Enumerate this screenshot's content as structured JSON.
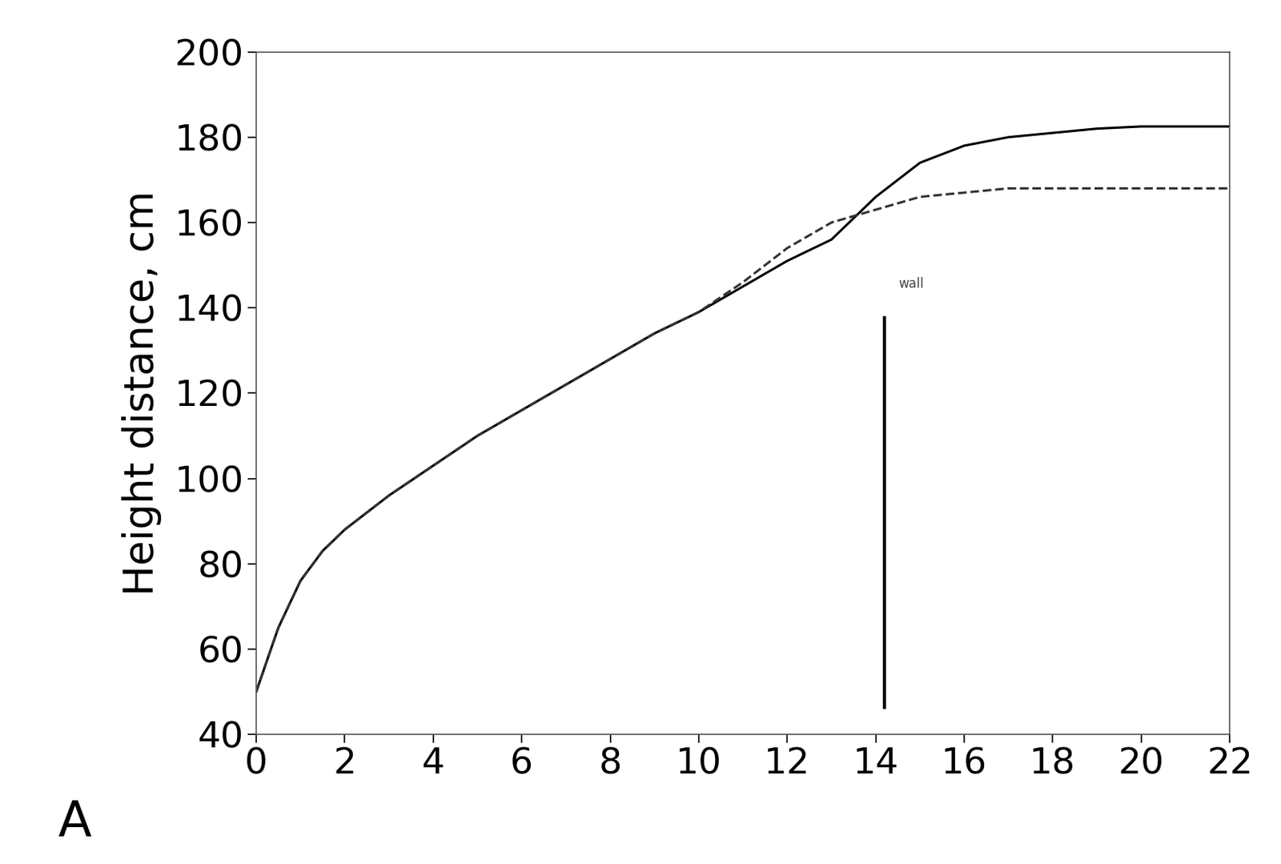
{
  "chart_data": {
    "type": "line",
    "y_label": "Height distance, cm",
    "panel_label": "A",
    "annotation": "wall",
    "x": [
      0,
      0.5,
      1,
      1.5,
      2,
      3,
      4,
      5,
      6,
      7,
      8,
      9,
      10,
      11,
      12,
      13,
      14,
      15,
      16,
      17,
      18,
      19,
      20,
      22
    ],
    "series": [
      {
        "color": "#000000",
        "line_style": "solid",
        "values": [
          50,
          65,
          76,
          83,
          88,
          96,
          103,
          110,
          116,
          122,
          128,
          134,
          139,
          145,
          151,
          156,
          166,
          174,
          178,
          180,
          181,
          182,
          182.5,
          182.5
        ]
      },
      {
        "color": "#333333",
        "line_style": "dashed",
        "values": [
          50,
          65,
          76,
          83,
          88,
          96,
          103,
          110,
          116,
          122,
          128,
          134,
          139,
          146,
          154,
          160,
          163,
          166,
          167,
          168,
          168,
          168,
          168,
          168
        ]
      }
    ],
    "xlim": [
      0,
      22
    ],
    "ylim": [
      40,
      200
    ],
    "xticks": [
      0,
      2,
      4,
      6,
      8,
      10,
      12,
      14,
      16,
      18,
      20,
      22
    ],
    "yticks": [
      40,
      60,
      80,
      100,
      120,
      140,
      160,
      180,
      200
    ],
    "grid": false
  }
}
